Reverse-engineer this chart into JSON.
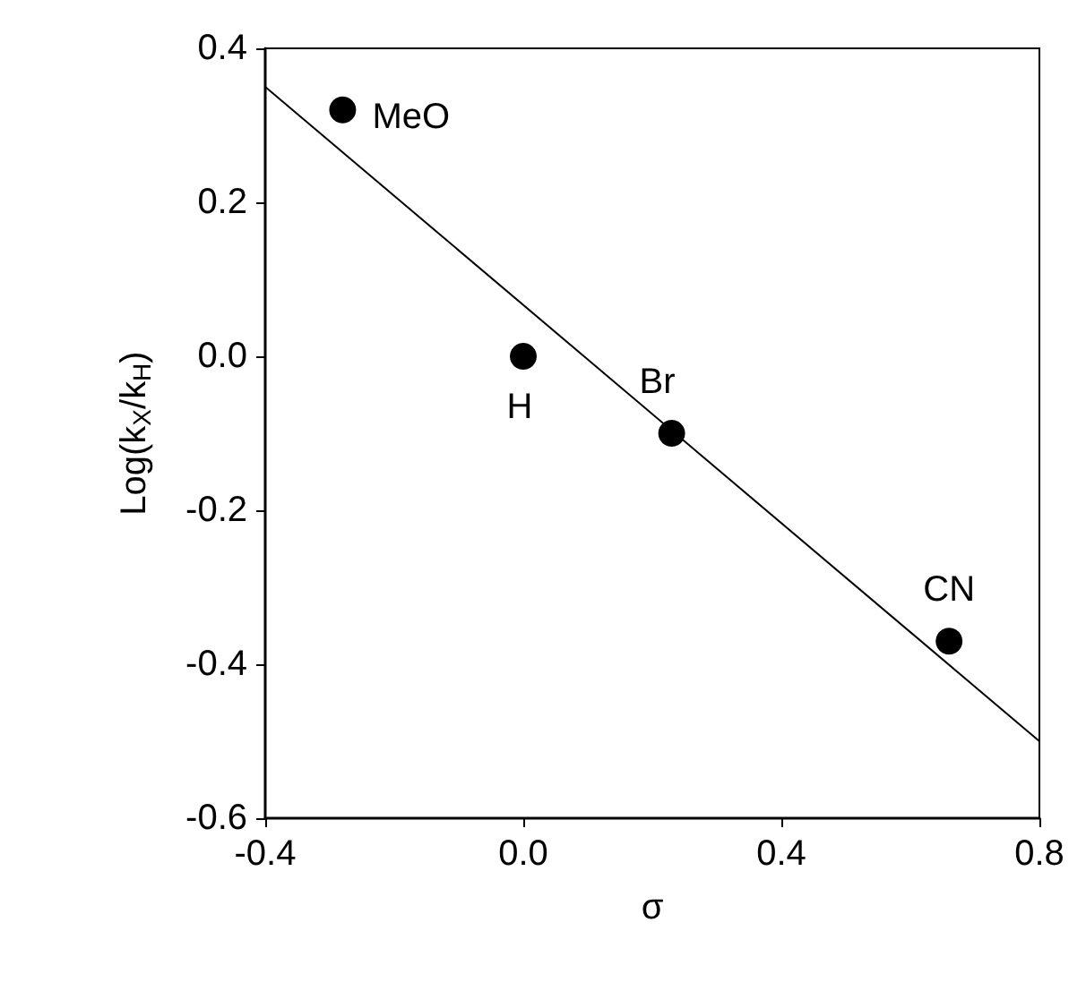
{
  "chart_data": {
    "type": "scatter",
    "xlabel": "σ",
    "ylabel": "Log(k$_{X}$/k$_{H}$)",
    "series": [
      {
        "color": "#000000",
        "x": [
          -0.28,
          0.0,
          0.23,
          0.66
        ],
        "values": [
          0.32,
          0.0,
          -0.1,
          -0.37
        ]
      },
      {
        "type": "line",
        "color": "#000000",
        "x": [
          -0.4,
          0.8
        ],
        "values": [
          0.35,
          -0.5
        ],
        "marker": "none"
      }
    ],
    "annotations": [
      {
        "text": "MeO",
        "x": -0.28,
        "y": 0.32
      },
      {
        "text": "H",
        "x": 0.0,
        "y": 0.0
      },
      {
        "text": "Br",
        "x": 0.23,
        "y": -0.1
      },
      {
        "text": "CN",
        "x": 0.66,
        "y": -0.37
      }
    ],
    "xlim": [
      -0.4,
      0.8
    ],
    "ylim": [
      -0.6,
      0.4
    ],
    "xticks": [
      {
        "value": -0.4,
        "label": "-0.4"
      },
      {
        "value": 0,
        "label": "0.0"
      },
      {
        "value": 0.4,
        "label": "0.4"
      },
      {
        "value": 0.8,
        "label": "0.8"
      }
    ],
    "yticks": [
      {
        "value": -0.6,
        "label": "-0.6"
      },
      {
        "value": -0.4,
        "label": "-0.4"
      },
      {
        "value": -0.2,
        "label": "-0.2"
      },
      {
        "value": 0,
        "label": "0.0"
      },
      {
        "value": 0.2,
        "label": "0.2"
      },
      {
        "value": 0.4,
        "label": "0.4"
      }
    ],
    "grid": false,
    "marker": "circle"
  }
}
